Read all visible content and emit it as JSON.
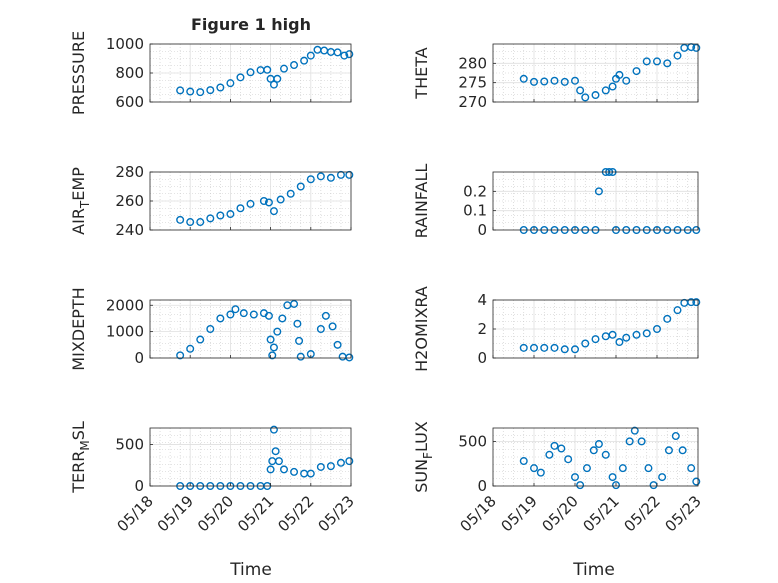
{
  "figure": {
    "title": "Figure 1 high",
    "xlabel": "Time",
    "date_ticks": [
      "05/18",
      "05/19",
      "05/20",
      "05/21",
      "05/22",
      "05/23"
    ]
  },
  "colors": {
    "marker": "#0072BD",
    "axis": "#262626",
    "grid": "#dfdfdf",
    "minor_grid": "#c8c8c8"
  },
  "chart_data": [
    {
      "type": "scatter",
      "ylabel": "PRESSURE",
      "ylim": [
        600,
        1000
      ],
      "yticks": [
        "600",
        "800",
        "1000"
      ],
      "grid": true,
      "points": [
        [
          "05/18 18:00",
          680
        ],
        [
          "05/19 00:00",
          672
        ],
        [
          "05/19 06:00",
          668
        ],
        [
          "05/19 12:00",
          682
        ],
        [
          "05/19 18:00",
          700
        ],
        [
          "05/20 00:00",
          730
        ],
        [
          "05/20 06:00",
          770
        ],
        [
          "05/20 12:00",
          805
        ],
        [
          "05/20 18:00",
          820
        ],
        [
          "05/20 22:00",
          822
        ],
        [
          "05/21 00:00",
          760
        ],
        [
          "05/21 02:00",
          720
        ],
        [
          "05/21 04:00",
          760
        ],
        [
          "05/21 08:00",
          830
        ],
        [
          "05/21 14:00",
          855
        ],
        [
          "05/21 20:00",
          885
        ],
        [
          "05/22 00:00",
          920
        ],
        [
          "05/22 04:00",
          960
        ],
        [
          "05/22 08:00",
          955
        ],
        [
          "05/22 12:00",
          945
        ],
        [
          "05/22 16:00",
          942
        ],
        [
          "05/22 20:00",
          920
        ],
        [
          "05/22 23:00",
          930
        ]
      ]
    },
    {
      "type": "scatter",
      "ylabel": "THETA",
      "ylim": [
        270,
        285
      ],
      "yticks": [
        "270",
        "275",
        "280"
      ],
      "grid": true,
      "points": [
        [
          "05/18 18:00",
          276
        ],
        [
          "05/19 00:00",
          275.2
        ],
        [
          "05/19 06:00",
          275.3
        ],
        [
          "05/19 12:00",
          275.5
        ],
        [
          "05/19 18:00",
          275.2
        ],
        [
          "05/20 00:00",
          275.5
        ],
        [
          "05/20 03:00",
          273
        ],
        [
          "05/20 06:00",
          271.2
        ],
        [
          "05/20 12:00",
          271.8
        ],
        [
          "05/20 18:00",
          273
        ],
        [
          "05/20 22:00",
          274
        ],
        [
          "05/21 00:00",
          276
        ],
        [
          "05/21 02:00",
          277
        ],
        [
          "05/21 06:00",
          275.5
        ],
        [
          "05/21 12:00",
          278
        ],
        [
          "05/21 18:00",
          280.5
        ],
        [
          "05/22 00:00",
          280.5
        ],
        [
          "05/22 06:00",
          280
        ],
        [
          "05/22 12:00",
          282
        ],
        [
          "05/22 16:00",
          284
        ],
        [
          "05/22 20:00",
          284.2
        ],
        [
          "05/22 23:00",
          284
        ]
      ]
    },
    {
      "type": "scatter",
      "ylabel": "AIR_TEMP",
      "ylim": [
        240,
        280
      ],
      "yticks": [
        "240",
        "260",
        "280"
      ],
      "grid": true,
      "points": [
        [
          "05/18 18:00",
          247
        ],
        [
          "05/19 00:00",
          245.5
        ],
        [
          "05/19 06:00",
          245.5
        ],
        [
          "05/19 12:00",
          248
        ],
        [
          "05/19 18:00",
          250
        ],
        [
          "05/20 00:00",
          251
        ],
        [
          "05/20 06:00",
          255
        ],
        [
          "05/20 12:00",
          258
        ],
        [
          "05/20 20:00",
          260
        ],
        [
          "05/20 23:00",
          259
        ],
        [
          "05/21 02:00",
          253
        ],
        [
          "05/21 06:00",
          261
        ],
        [
          "05/21 12:00",
          265
        ],
        [
          "05/21 18:00",
          270
        ],
        [
          "05/22 00:00",
          275
        ],
        [
          "05/22 06:00",
          277
        ],
        [
          "05/22 12:00",
          276
        ],
        [
          "05/22 18:00",
          278
        ],
        [
          "05/22 23:00",
          278
        ]
      ]
    },
    {
      "type": "scatter",
      "ylabel": "RAINFALL",
      "ylim": [
        0,
        0.3
      ],
      "yticks": [
        "0",
        "0.1",
        "0.2"
      ],
      "grid": true,
      "points": [
        [
          "05/18 18:00",
          0
        ],
        [
          "05/19 00:00",
          0
        ],
        [
          "05/19 06:00",
          0
        ],
        [
          "05/19 12:00",
          0
        ],
        [
          "05/19 18:00",
          0
        ],
        [
          "05/20 00:00",
          0
        ],
        [
          "05/20 06:00",
          0
        ],
        [
          "05/20 12:00",
          0
        ],
        [
          "05/20 14:00",
          0.2
        ],
        [
          "05/20 18:00",
          0.3
        ],
        [
          "05/20 20:00",
          0.3
        ],
        [
          "05/20 22:00",
          0.3
        ],
        [
          "05/21 00:00",
          0
        ],
        [
          "05/21 06:00",
          0
        ],
        [
          "05/21 12:00",
          0
        ],
        [
          "05/21 18:00",
          0
        ],
        [
          "05/22 00:00",
          0
        ],
        [
          "05/22 06:00",
          0
        ],
        [
          "05/22 12:00",
          0
        ],
        [
          "05/22 18:00",
          0
        ],
        [
          "05/22 23:00",
          0
        ]
      ]
    },
    {
      "type": "scatter",
      "ylabel": "MIXDEPTH",
      "ylim": [
        0,
        2200
      ],
      "yticks": [
        "0",
        "1000",
        "2000"
      ],
      "grid": true,
      "points": [
        [
          "05/18 18:00",
          100
        ],
        [
          "05/19 00:00",
          350
        ],
        [
          "05/19 06:00",
          700
        ],
        [
          "05/19 12:00",
          1100
        ],
        [
          "05/19 18:00",
          1500
        ],
        [
          "05/20 00:00",
          1650
        ],
        [
          "05/20 03:00",
          1850
        ],
        [
          "05/20 08:00",
          1700
        ],
        [
          "05/20 14:00",
          1650
        ],
        [
          "05/20 20:00",
          1700
        ],
        [
          "05/20 23:00",
          1600
        ],
        [
          "05/21 00:00",
          700
        ],
        [
          "05/21 01:00",
          100
        ],
        [
          "05/21 02:00",
          400
        ],
        [
          "05/21 04:00",
          1000
        ],
        [
          "05/21 07:00",
          1500
        ],
        [
          "05/21 10:00",
          2000
        ],
        [
          "05/21 14:00",
          2050
        ],
        [
          "05/21 16:00",
          1300
        ],
        [
          "05/21 17:00",
          650
        ],
        [
          "05/21 18:00",
          50
        ],
        [
          "05/22 00:00",
          150
        ],
        [
          "05/22 06:00",
          1100
        ],
        [
          "05/22 09:00",
          1600
        ],
        [
          "05/22 13:00",
          1200
        ],
        [
          "05/22 16:00",
          500
        ],
        [
          "05/22 19:00",
          50
        ],
        [
          "05/22 23:00",
          20
        ]
      ]
    },
    {
      "type": "scatter",
      "ylabel": "H2OMIXRA",
      "ylim": [
        0,
        4
      ],
      "yticks": [
        "0",
        "2",
        "4"
      ],
      "grid": true,
      "points": [
        [
          "05/18 18:00",
          0.7
        ],
        [
          "05/19 00:00",
          0.7
        ],
        [
          "05/19 06:00",
          0.7
        ],
        [
          "05/19 12:00",
          0.7
        ],
        [
          "05/19 18:00",
          0.6
        ],
        [
          "05/20 00:00",
          0.6
        ],
        [
          "05/20 06:00",
          1.0
        ],
        [
          "05/20 12:00",
          1.3
        ],
        [
          "05/20 18:00",
          1.5
        ],
        [
          "05/20 22:00",
          1.6
        ],
        [
          "05/21 02:00",
          1.1
        ],
        [
          "05/21 06:00",
          1.4
        ],
        [
          "05/21 12:00",
          1.6
        ],
        [
          "05/21 18:00",
          1.7
        ],
        [
          "05/22 00:00",
          2.0
        ],
        [
          "05/22 06:00",
          2.7
        ],
        [
          "05/22 12:00",
          3.3
        ],
        [
          "05/22 16:00",
          3.8
        ],
        [
          "05/22 20:00",
          3.85
        ],
        [
          "05/22 23:00",
          3.85
        ]
      ]
    },
    {
      "type": "scatter",
      "ylabel": "TERR_MSL",
      "ylim": [
        0,
        700
      ],
      "yticks": [
        "0",
        "500"
      ],
      "grid": true,
      "points": [
        [
          "05/18 18:00",
          0
        ],
        [
          "05/19 00:00",
          0
        ],
        [
          "05/19 06:00",
          0
        ],
        [
          "05/19 12:00",
          0
        ],
        [
          "05/19 18:00",
          0
        ],
        [
          "05/20 00:00",
          0
        ],
        [
          "05/20 06:00",
          0
        ],
        [
          "05/20 12:00",
          0
        ],
        [
          "05/20 18:00",
          0
        ],
        [
          "05/20 22:00",
          0
        ],
        [
          "05/21 00:00",
          200
        ],
        [
          "05/21 01:00",
          300
        ],
        [
          "05/21 02:00",
          680
        ],
        [
          "05/21 03:00",
          420
        ],
        [
          "05/21 05:00",
          300
        ],
        [
          "05/21 08:00",
          200
        ],
        [
          "05/21 14:00",
          170
        ],
        [
          "05/21 20:00",
          150
        ],
        [
          "05/22 00:00",
          150
        ],
        [
          "05/22 06:00",
          230
        ],
        [
          "05/22 12:00",
          240
        ],
        [
          "05/22 18:00",
          280
        ],
        [
          "05/22 23:00",
          300
        ]
      ]
    },
    {
      "type": "scatter",
      "ylabel": "SUN_FLUX",
      "ylim": [
        0,
        650
      ],
      "yticks": [
        "0",
        "500"
      ],
      "grid": true,
      "points": [
        [
          "05/18 18:00",
          280
        ],
        [
          "05/19 00:00",
          200
        ],
        [
          "05/19 04:00",
          150
        ],
        [
          "05/19 09:00",
          350
        ],
        [
          "05/19 12:00",
          450
        ],
        [
          "05/19 16:00",
          420
        ],
        [
          "05/19 20:00",
          300
        ],
        [
          "05/20 00:00",
          100
        ],
        [
          "05/20 03:00",
          10
        ],
        [
          "05/20 07:00",
          200
        ],
        [
          "05/20 11:00",
          400
        ],
        [
          "05/20 14:00",
          470
        ],
        [
          "05/20 18:00",
          350
        ],
        [
          "05/20 22:00",
          100
        ],
        [
          "05/21 00:00",
          10
        ],
        [
          "05/21 04:00",
          200
        ],
        [
          "05/21 08:00",
          500
        ],
        [
          "05/21 11:00",
          620
        ],
        [
          "05/21 15:00",
          500
        ],
        [
          "05/21 19:00",
          200
        ],
        [
          "05/21 22:00",
          10
        ],
        [
          "05/22 03:00",
          100
        ],
        [
          "05/22 07:00",
          400
        ],
        [
          "05/22 11:00",
          560
        ],
        [
          "05/22 15:00",
          400
        ],
        [
          "05/22 20:00",
          200
        ],
        [
          "05/22 23:00",
          50
        ]
      ]
    }
  ]
}
